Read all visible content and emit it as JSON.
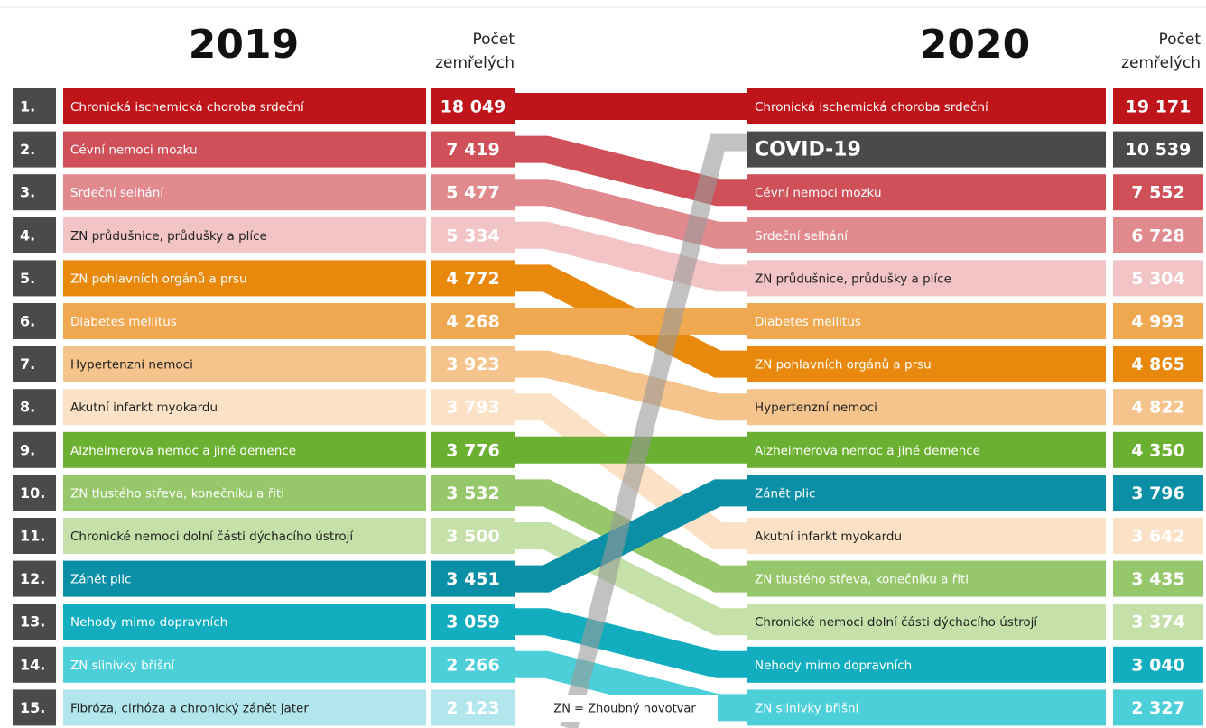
{
  "chart_data": {
    "type": "bump",
    "ranks": [
      "1.",
      "2.",
      "3.",
      "4.",
      "5.",
      "6.",
      "7.",
      "8.",
      "9.",
      "10.",
      "11.",
      "12.",
      "13.",
      "14.",
      "15."
    ],
    "note": "ZN = Zhoubný novotvar",
    "columns": [
      {
        "title": "2019",
        "value_header": "Počet zemřelých",
        "categories": [
          "Chronická ischemická choroba srdeční",
          "Cévní nemoci mozku",
          "Srdeční selhání",
          "ZN průdušnice, průdušky a plíce",
          "ZN pohlavních orgánů a prsu",
          "Diabetes mellitus",
          "Hypertenzní nemoci",
          "Akutní infarkt myokardu",
          "Alzheimerova nemoc a jiné demence",
          "ZN tlustého střeva, konečníku a řiti",
          "Chronické nemoci dolní části dýchacího ústrojí",
          "Zánět plic",
          "Nehody mimo dopravních",
          "ZN slinivky břišní",
          "Fibróza, cirhóza a chronický zánět jater"
        ],
        "values": [
          18049,
          7419,
          5477,
          5334,
          4772,
          4268,
          3923,
          3793,
          3776,
          3532,
          3500,
          3451,
          3059,
          2266,
          2123
        ],
        "value_labels": [
          "18 049",
          "7 419",
          "5 477",
          "5 334",
          "4 772",
          "4 268",
          "3 923",
          "3 793",
          "3 776",
          "3 532",
          "3 500",
          "3 451",
          "3 059",
          "2 266",
          "2 123"
        ],
        "colors": [
          "#c0141b",
          "#d0505a",
          "#e08a8e",
          "#f2c4c6",
          "#e8880c",
          "#f0a850",
          "#f5c48c",
          "#fbe2c6",
          "#6cb031",
          "#96c76a",
          "#c5e0a8",
          "#0a8fa6",
          "#12aec0",
          "#4ccfd8",
          "#b0e6ec"
        ]
      },
      {
        "title": "2020",
        "value_header": "Počet zemřelých",
        "categories": [
          "Chronická ischemická choroba srdeční",
          "COVID-19",
          "Cévní nemoci mozku",
          "Srdeční selhání",
          "ZN průdušnice, průdušky a plíce",
          "Diabetes mellitus",
          "ZN pohlavních orgánů a prsu",
          "Hypertenzní nemoci",
          "Alzheimerova nemoc a jiné demence",
          "Zánět plic",
          "Akutní infarkt myokardu",
          "ZN tlustého střeva, konečníku a řiti",
          "Chronické nemoci dolní části dýchacího ústrojí",
          "Nehody mimo dopravních",
          "ZN slinivky břišní"
        ],
        "values": [
          19171,
          10539,
          7552,
          6728,
          5304,
          4993,
          4865,
          4822,
          4350,
          3796,
          3642,
          3435,
          3374,
          3040,
          2327
        ],
        "value_labels": [
          "19 171",
          "10 539",
          "7 552",
          "6 728",
          "5 304",
          "4 993",
          "4 865",
          "4 822",
          "4 350",
          "3 796",
          "3 642",
          "3 435",
          "3 374",
          "3 040",
          "2 327"
        ],
        "colors": [
          "#c0141b",
          "#4a4a4a",
          "#d0505a",
          "#e08a8e",
          "#f2c4c6",
          "#f0a850",
          "#e8880c",
          "#f5c48c",
          "#6cb031",
          "#0a8fa6",
          "#fbe2c6",
          "#96c76a",
          "#c5e0a8",
          "#12aec0",
          "#4ccfd8"
        ]
      }
    ]
  }
}
